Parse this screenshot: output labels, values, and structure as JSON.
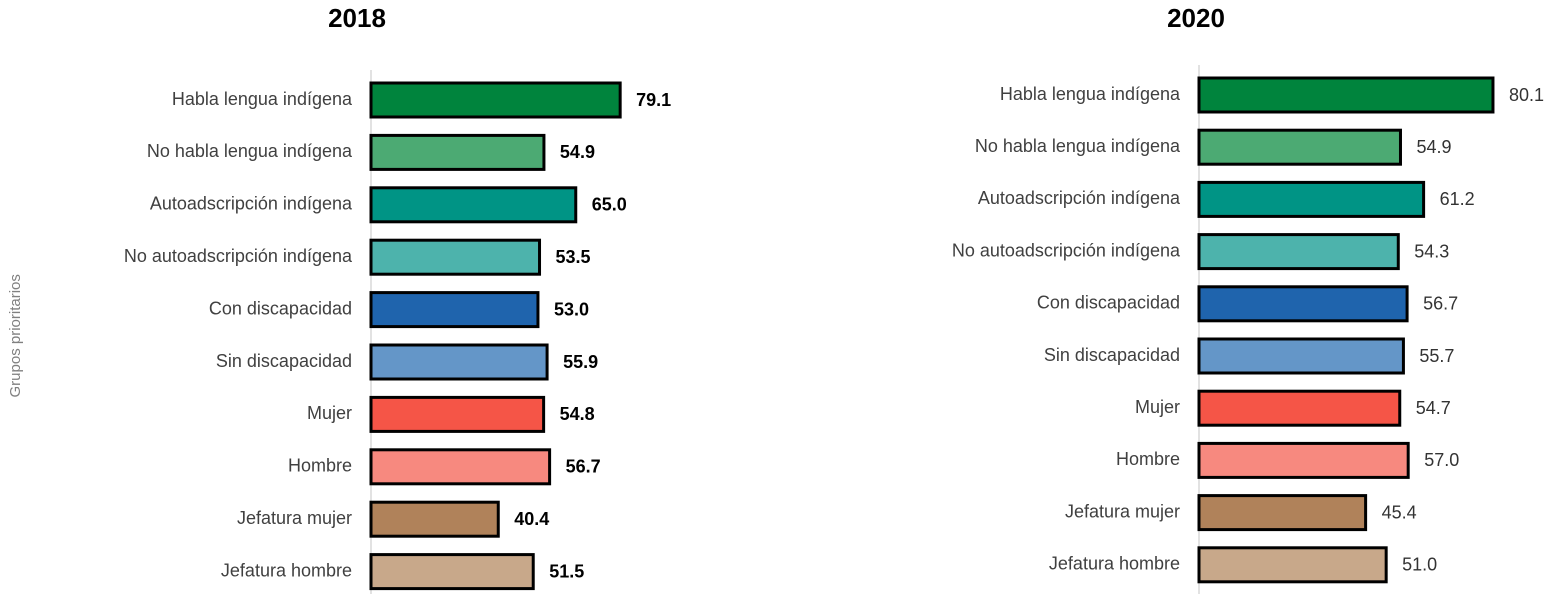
{
  "chart_data": [
    {
      "type": "hbar",
      "title": "2018",
      "y_label": "Grupos prioritarios",
      "categories": [
        "Habla lengua indígena",
        "No habla lengua indígena",
        "Autoadscripción indígena",
        "No autoadscripción indígena",
        "Con discapacidad",
        "Sin discapacidad",
        "Mujer",
        "Hombre",
        "Jefatura mujer",
        "Jefatura hombre"
      ],
      "values": [
        79.1,
        54.9,
        65.0,
        53.5,
        53.0,
        55.9,
        54.8,
        56.7,
        40.4,
        51.5
      ],
      "value_labels": [
        "79.1",
        "54.9",
        "65.0",
        "53.5",
        "53.0",
        "55.9",
        "54.8",
        "56.7",
        "40.4",
        "51.5"
      ],
      "colors": [
        "#00843d",
        "#4caa73",
        "#009485",
        "#4db3ac",
        "#1f64ad",
        "#6496c8",
        "#f55547",
        "#f7897f",
        "#b0825a",
        "#c8a88a"
      ],
      "xlim": [
        0,
        100
      ]
    },
    {
      "type": "hbar",
      "title": "2020",
      "categories": [
        "Habla lengua indígena",
        "No habla lengua indígena",
        "Autoadscripción indígena",
        "No autoadscripción indígena",
        "Con discapacidad",
        "Sin discapacidad",
        "Mujer",
        "Hombre",
        "Jefatura mujer",
        "Jefatura hombre"
      ],
      "values": [
        80.1,
        54.9,
        61.2,
        54.3,
        56.7,
        55.7,
        54.7,
        57.0,
        45.4,
        51.0
      ],
      "value_labels": [
        "80.1",
        "54.9",
        "61.2",
        "54.3",
        "56.7",
        "55.7",
        "54.7",
        "57.0",
        "45.4",
        "51.0"
      ],
      "colors": [
        "#00843d",
        "#4caa73",
        "#009485",
        "#4db3ac",
        "#1f64ad",
        "#6496c8",
        "#f55547",
        "#f7897f",
        "#b0825a",
        "#c8a88a"
      ],
      "xlim": [
        0,
        100
      ]
    }
  ]
}
